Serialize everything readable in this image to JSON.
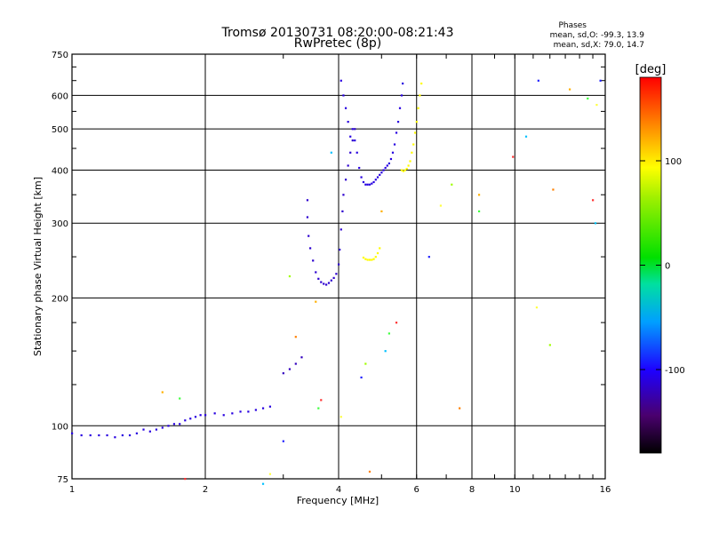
{
  "chart_data": {
    "type": "scatter",
    "title": "Tromsø 20130731 08:20:00-08:21:43",
    "subtitle": "RwPretec (8p)",
    "xlabel": "Frequency [MHz]",
    "ylabel": "Stationary phase Virtual Height [km]",
    "x_scale": "log",
    "y_scale": "log",
    "xlim": [
      1,
      16
    ],
    "ylim": [
      75,
      750
    ],
    "x_ticks": [
      1,
      2,
      4,
      6,
      8,
      10,
      16
    ],
    "x_tick_labels": [
      "1",
      "2",
      "4",
      "6",
      "8",
      "10",
      "16"
    ],
    "y_ticks": [
      75,
      100,
      200,
      300,
      400,
      500,
      600,
      750
    ],
    "y_tick_labels": [
      "75",
      "100",
      "200",
      "300",
      "400",
      "500",
      "600",
      "750"
    ],
    "grid": true,
    "phases_box": {
      "title": "Phases",
      "line_o": "mean, sd,O: -99.3, 13.9",
      "line_x": "mean, sd,X:  79.0, 14.7"
    },
    "colorbar": {
      "label": "[deg]",
      "range": [
        -180,
        180
      ],
      "tick_values": [
        100,
        0,
        -100
      ],
      "tick_labels": [
        "100",
        "0",
        "-100"
      ]
    },
    "series": [
      {
        "name": "E-region trace (blue)",
        "phase": -110,
        "points": [
          [
            1.0,
            96
          ],
          [
            1.05,
            95
          ],
          [
            1.1,
            95
          ],
          [
            1.15,
            95
          ],
          [
            1.2,
            95
          ],
          [
            1.25,
            94
          ],
          [
            1.3,
            95
          ],
          [
            1.35,
            95
          ],
          [
            1.4,
            96
          ],
          [
            1.45,
            98
          ],
          [
            1.5,
            97
          ],
          [
            1.55,
            98
          ],
          [
            1.6,
            99
          ],
          [
            1.65,
            100
          ],
          [
            1.7,
            101
          ],
          [
            1.75,
            101
          ],
          [
            1.8,
            103
          ],
          [
            1.85,
            104
          ],
          [
            1.9,
            105
          ],
          [
            1.95,
            106
          ],
          [
            2.0,
            106
          ],
          [
            2.1,
            107
          ],
          [
            2.2,
            106
          ],
          [
            2.3,
            107
          ],
          [
            2.4,
            108
          ],
          [
            2.5,
            108
          ],
          [
            2.6,
            109
          ],
          [
            2.7,
            110
          ],
          [
            2.8,
            111
          ]
        ]
      },
      {
        "name": "E trace upturn (blue)",
        "phase": -120,
        "points": [
          [
            3.0,
            133
          ],
          [
            3.1,
            136
          ],
          [
            3.2,
            140
          ],
          [
            3.3,
            145
          ]
        ]
      },
      {
        "name": "F1 trace (blue)",
        "phase": -115,
        "points": [
          [
            3.4,
            340
          ],
          [
            3.4,
            310
          ],
          [
            3.42,
            280
          ],
          [
            3.45,
            262
          ],
          [
            3.5,
            245
          ],
          [
            3.55,
            230
          ],
          [
            3.6,
            222
          ],
          [
            3.65,
            218
          ],
          [
            3.7,
            216
          ],
          [
            3.75,
            215
          ],
          [
            3.8,
            217
          ],
          [
            3.85,
            220
          ],
          [
            3.9,
            223
          ],
          [
            3.95,
            228
          ],
          [
            4.0,
            240
          ],
          [
            4.02,
            260
          ],
          [
            4.05,
            290
          ],
          [
            4.08,
            320
          ],
          [
            4.1,
            350
          ],
          [
            4.15,
            380
          ],
          [
            4.2,
            410
          ],
          [
            4.25,
            440
          ],
          [
            4.3,
            470
          ],
          [
            4.35,
            500
          ]
        ]
      },
      {
        "name": "F2 o-trace (blue)",
        "phase": -110,
        "points": [
          [
            4.3,
            500
          ],
          [
            4.35,
            470
          ],
          [
            4.4,
            440
          ],
          [
            4.45,
            405
          ],
          [
            4.5,
            385
          ],
          [
            4.55,
            375
          ],
          [
            4.6,
            370
          ],
          [
            4.65,
            370
          ],
          [
            4.7,
            370
          ],
          [
            4.75,
            372
          ],
          [
            4.8,
            375
          ],
          [
            4.85,
            380
          ],
          [
            4.9,
            385
          ],
          [
            4.95,
            390
          ],
          [
            5.0,
            395
          ],
          [
            5.05,
            400
          ],
          [
            5.1,
            405
          ],
          [
            5.15,
            410
          ],
          [
            5.2,
            415
          ],
          [
            5.25,
            425
          ],
          [
            5.3,
            440
          ],
          [
            5.35,
            460
          ],
          [
            5.4,
            490
          ],
          [
            5.45,
            520
          ],
          [
            5.5,
            560
          ],
          [
            5.55,
            600
          ],
          [
            5.58,
            640
          ]
        ]
      },
      {
        "name": "Upper E-cusp (blue)",
        "phase": -110,
        "points": [
          [
            4.05,
            650
          ],
          [
            4.1,
            600
          ],
          [
            4.15,
            560
          ],
          [
            4.2,
            520
          ],
          [
            4.25,
            480
          ]
        ]
      },
      {
        "name": "Es x-trace (yellow)",
        "phase": 95,
        "points": [
          [
            4.55,
            249
          ],
          [
            4.6,
            247
          ],
          [
            4.65,
            246
          ],
          [
            4.7,
            246
          ],
          [
            4.75,
            246
          ],
          [
            4.8,
            247
          ],
          [
            4.85,
            250
          ],
          [
            4.9,
            255
          ],
          [
            4.95,
            262
          ]
        ]
      },
      {
        "name": "F2 x-trace (yellow)",
        "phase": 95,
        "points": [
          [
            5.55,
            400
          ],
          [
            5.6,
            398
          ],
          [
            5.65,
            400
          ],
          [
            5.7,
            403
          ],
          [
            5.75,
            410
          ],
          [
            5.8,
            420
          ],
          [
            5.85,
            440
          ],
          [
            5.9,
            460
          ],
          [
            5.95,
            490
          ],
          [
            6.0,
            520
          ],
          [
            6.05,
            560
          ],
          [
            6.1,
            600
          ],
          [
            6.15,
            640
          ]
        ]
      },
      {
        "name": "Scattered echoes",
        "phase": 0,
        "points": [
          [
            1.6,
            120
          ],
          [
            1.75,
            116
          ],
          [
            1.8,
            75
          ],
          [
            2.7,
            73
          ],
          [
            2.8,
            77
          ],
          [
            3.0,
            92
          ],
          [
            3.1,
            225
          ],
          [
            3.2,
            162
          ],
          [
            3.55,
            196
          ],
          [
            3.6,
            110
          ],
          [
            3.65,
            115
          ],
          [
            3.85,
            440
          ],
          [
            4.05,
            105
          ],
          [
            4.5,
            130
          ],
          [
            4.6,
            140
          ],
          [
            4.7,
            78
          ],
          [
            5.0,
            320
          ],
          [
            5.2,
            165
          ],
          [
            5.4,
            175
          ],
          [
            5.1,
            150
          ],
          [
            6.8,
            330
          ],
          [
            6.4,
            250
          ],
          [
            7.2,
            370
          ],
          [
            7.5,
            110
          ],
          [
            8.3,
            350
          ],
          [
            8.3,
            320
          ],
          [
            9.9,
            430
          ],
          [
            10.6,
            480
          ],
          [
            11.2,
            190
          ],
          [
            11.3,
            650
          ],
          [
            12.0,
            155
          ],
          [
            12.2,
            360
          ],
          [
            13.3,
            620
          ],
          [
            14.6,
            590
          ],
          [
            15.0,
            340
          ],
          [
            15.2,
            300
          ],
          [
            15.3,
            570
          ],
          [
            15.6,
            650
          ]
        ]
      }
    ]
  }
}
